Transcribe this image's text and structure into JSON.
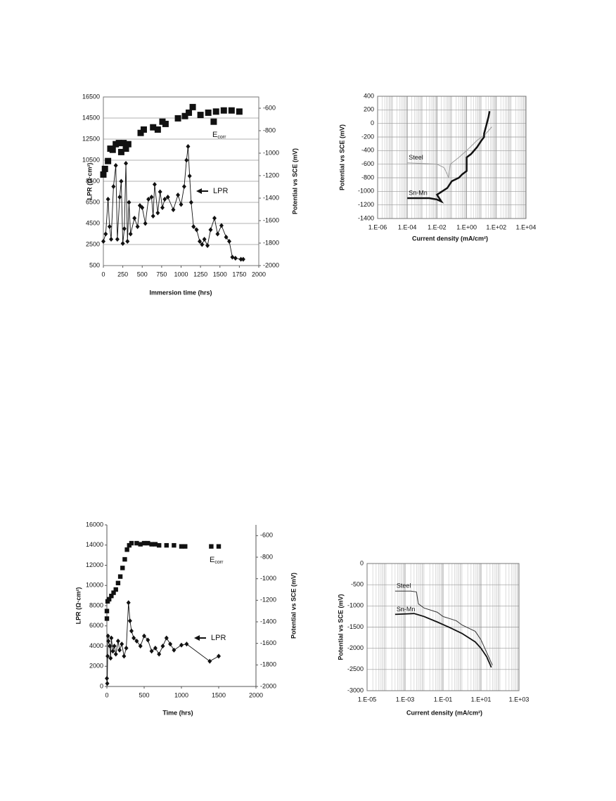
{
  "chart_data": [
    {
      "type": "scatter",
      "xlabel": "Immersion time  (hrs)",
      "ylabel": "LPR  (Ω·cm²)",
      "y2label": "Potential vs SCE  (mV)",
      "xlim": [
        0,
        2000
      ],
      "xticks": [
        0,
        250,
        500,
        750,
        1000,
        1250,
        1500,
        1750,
        2000
      ],
      "ylim": [
        500,
        16500
      ],
      "yticks": [
        500,
        2500,
        4500,
        6500,
        8500,
        10500,
        12500,
        14500,
        16500
      ],
      "y2lim": [
        -2000,
        -500
      ],
      "y2ticks": [
        -2000,
        -1800,
        -1600,
        -1400,
        -1200,
        -1000,
        -800,
        -600
      ],
      "grid": true,
      "frame": true,
      "series": [
        {
          "name": "E",
          "name_subscript": "corr",
          "color": "#111",
          "marker": "square",
          "line": false,
          "axis": "y2",
          "x": [
            0,
            20,
            60,
            90,
            120,
            160,
            200,
            230,
            260,
            290,
            320,
            480,
            520,
            640,
            700,
            760,
            800,
            960,
            1050,
            1100,
            1150,
            1250,
            1350,
            1420,
            1450,
            1550,
            1650,
            1750
          ],
          "values": [
            -1190,
            -1140,
            -1070,
            -960,
            -970,
            -920,
            -910,
            -990,
            -910,
            -960,
            -920,
            -820,
            -790,
            -770,
            -790,
            -720,
            -740,
            -690,
            -670,
            -640,
            -590,
            -660,
            -640,
            -720,
            -630,
            -620,
            -620,
            -630
          ]
        },
        {
          "name": "LPR",
          "color": "#111",
          "marker": "diamond",
          "line": true,
          "axis": "y",
          "x": [
            0,
            30,
            60,
            80,
            100,
            130,
            160,
            180,
            210,
            230,
            250,
            270,
            290,
            310,
            330,
            350,
            400,
            440,
            470,
            500,
            540,
            580,
            620,
            640,
            660,
            700,
            730,
            760,
            790,
            830,
            900,
            960,
            1000,
            1040,
            1070,
            1090,
            1110,
            1130,
            1160,
            1200,
            1240,
            1270,
            1300,
            1340,
            1380,
            1430,
            1470,
            1520,
            1580,
            1620,
            1660,
            1700,
            1770,
            1800
          ],
          "values": [
            2800,
            3500,
            6800,
            4200,
            3000,
            8000,
            10000,
            3000,
            7000,
            8500,
            2600,
            4000,
            10200,
            2800,
            6500,
            3500,
            5000,
            4200,
            6200,
            6000,
            4500,
            6800,
            7000,
            5200,
            8200,
            5500,
            7500,
            6000,
            6800,
            7000,
            5800,
            7200,
            6300,
            8000,
            10500,
            11800,
            9000,
            6500,
            4200,
            3900,
            2800,
            2500,
            3000,
            2400,
            3900,
            5000,
            3500,
            4300,
            3200,
            2800,
            1300,
            1200,
            1100,
            1100
          ]
        }
      ]
    },
    {
      "type": "line",
      "xlabel": "Current density  (mA/cm²)",
      "ylabel": "Potential vs SCE   (mV)",
      "xscale": "log",
      "xlim": [
        1e-06,
        10000
      ],
      "xticks": [
        {
          "value": 1e-06,
          "label": "1.E-06"
        },
        {
          "value": 0.0001,
          "label": "1.E-04"
        },
        {
          "value": 0.01,
          "label": "1.E-02"
        },
        {
          "value": 1,
          "label": "1.E+00"
        },
        {
          "value": 100,
          "label": "1.E+02"
        },
        {
          "value": 10000,
          "label": "1.E+04"
        }
      ],
      "ylim": [
        -1400,
        400
      ],
      "yticks": [
        -1400,
        -1200,
        -1000,
        -800,
        -600,
        -400,
        -200,
        0,
        200,
        400
      ],
      "grid": true,
      "minor_grid": true,
      "frame": true,
      "series": [
        {
          "name": "Steel",
          "color": "#9a9a9a",
          "width": 1,
          "x": [
            0.0001,
            0.001,
            0.01,
            0.03,
            0.05,
            0.06,
            0.08,
            0.3,
            1,
            5,
            20,
            50
          ],
          "values": [
            -580,
            -590,
            -600,
            -650,
            -750,
            -800,
            -600,
            -500,
            -400,
            -250,
            -150,
            -50
          ]
        },
        {
          "name": "Sn-Mn",
          "color": "#111",
          "width": 2.5,
          "x": [
            0.0001,
            0.001,
            0.003,
            0.01,
            0.02,
            0.01,
            0.05,
            0.1,
            0.3,
            0.5,
            1,
            1,
            2,
            5,
            10,
            15,
            15,
            20,
            30,
            35
          ],
          "values": [
            -1100,
            -1100,
            -1100,
            -1120,
            -1150,
            -1050,
            -950,
            -850,
            -800,
            -750,
            -700,
            -500,
            -450,
            -350,
            -250,
            -200,
            -150,
            -50,
            100,
            180
          ]
        }
      ]
    },
    {
      "type": "scatter",
      "xlabel": "Time  (hrs)",
      "ylabel": "LPR  (Ω·cm²)",
      "y2label": "Potential vs SCE  (mV)",
      "xlim": [
        0,
        2000
      ],
      "xticks": [
        0,
        500,
        1000,
        1500,
        2000
      ],
      "ylim": [
        0,
        16000
      ],
      "yticks": [
        0,
        2000,
        4000,
        6000,
        8000,
        10000,
        12000,
        14000,
        16000
      ],
      "y2lim": [
        -2000,
        -500
      ],
      "y2ticks": [
        -2000,
        -1800,
        -1600,
        -1400,
        -1200,
        -1000,
        -800,
        -600
      ],
      "grid": false,
      "frame": false,
      "series": [
        {
          "name": "E",
          "name_subscript": "corr",
          "color": "#111",
          "marker": "square",
          "line": false,
          "axis": "y2",
          "x": [
            0,
            0,
            10,
            30,
            60,
            90,
            120,
            150,
            180,
            210,
            240,
            270,
            300,
            330,
            400,
            450,
            500,
            550,
            600,
            650,
            700,
            800,
            900,
            1000,
            1050,
            1400,
            1500
          ],
          "values": [
            -1370,
            -1300,
            -1210,
            -1190,
            -1160,
            -1130,
            -1100,
            -1040,
            -980,
            -900,
            -820,
            -730,
            -690,
            -670,
            -670,
            -680,
            -670,
            -670,
            -680,
            -680,
            -690,
            -690,
            -690,
            -700,
            -700,
            -700,
            -700
          ]
        },
        {
          "name": "LPR",
          "color": "#111",
          "marker": "diamond",
          "line": true,
          "axis": "y",
          "x": [
            0,
            5,
            10,
            15,
            20,
            40,
            50,
            60,
            80,
            100,
            120,
            150,
            170,
            200,
            230,
            260,
            290,
            310,
            330,
            360,
            400,
            450,
            500,
            550,
            600,
            650,
            700,
            750,
            800,
            850,
            900,
            1000,
            1070,
            1380,
            1500
          ],
          "values": [
            800,
            300,
            3000,
            5000,
            4500,
            4000,
            2800,
            4800,
            3500,
            4000,
            3200,
            4500,
            3600,
            4200,
            3000,
            3800,
            8300,
            6500,
            5500,
            4800,
            4500,
            4000,
            5000,
            4600,
            3500,
            3800,
            3200,
            4000,
            4800,
            4200,
            3600,
            4100,
            4200,
            2500,
            3000
          ]
        }
      ]
    },
    {
      "type": "line",
      "xlabel": "Current density  (mA/cm²)",
      "ylabel": "Potential vs SCE  (mV)",
      "xscale": "log",
      "xlim": [
        1e-05,
        1000
      ],
      "xticks": [
        {
          "value": 1e-05,
          "label": "1.E-05"
        },
        {
          "value": 0.001,
          "label": "1.E-03"
        },
        {
          "value": 0.1,
          "label": "1.E-01"
        },
        {
          "value": 10,
          "label": "1.E+01"
        },
        {
          "value": 1000,
          "label": "1.E+03"
        }
      ],
      "ylim": [
        -3000,
        0
      ],
      "yticks": [
        -3000,
        -2500,
        -2000,
        -1500,
        -1000,
        -500,
        0
      ],
      "grid": true,
      "minor_grid": true,
      "frame": true,
      "series": [
        {
          "name": "Steel",
          "color": "#333",
          "width": 1,
          "x": [
            0.0003,
            0.001,
            0.002,
            0.004,
            0.005,
            0.01,
            0.05,
            0.1,
            0.5,
            1,
            5,
            10,
            20,
            40
          ],
          "values": [
            -650,
            -650,
            -650,
            -670,
            -950,
            -1050,
            -1150,
            -1250,
            -1350,
            -1450,
            -1600,
            -1800,
            -2100,
            -2400
          ]
        },
        {
          "name": "Sn-Mn",
          "color": "#111",
          "width": 1.8,
          "x": [
            0.0003,
            0.003,
            0.01,
            0.05,
            0.2,
            1,
            5,
            10,
            20,
            35
          ],
          "values": [
            -1200,
            -1180,
            -1250,
            -1380,
            -1500,
            -1650,
            -1850,
            -2000,
            -2200,
            -2450
          ]
        }
      ]
    }
  ]
}
